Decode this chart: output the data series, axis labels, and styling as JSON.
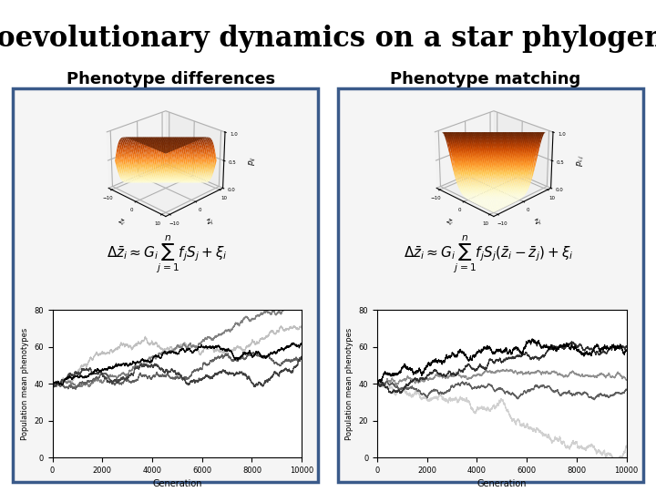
{
  "title": "Coevolutionary dynamics on a star phylogeny",
  "title_fontsize": 22,
  "subtitle_left": "Phenotype differences",
  "subtitle_right": "Phenotype matching",
  "subtitle_fontsize": 13,
  "background_color": "#ffffff",
  "panel_border_color": "#3a5a8a",
  "panel_border_lw": 2.5,
  "gen_max": 10000,
  "ylim_bottom": 0,
  "ylim_top": 80,
  "yticks": [
    0,
    20,
    40,
    60,
    80
  ],
  "xticks": [
    0,
    2000,
    4000,
    6000,
    8000,
    10000
  ],
  "xlabel": "Generation",
  "ylabel": "Population mean phenotypes",
  "left_lines": {
    "colors": [
      "#c0c0c0",
      "#808080",
      "#606060",
      "#404040",
      "#000000"
    ],
    "slopes": [
      0.0033,
      0.003,
      0.0027,
      0.0024,
      0.0016
    ],
    "noise": [
      0.4,
      0.35,
      0.35,
      0.4,
      0.3
    ],
    "start": 40
  },
  "right_lines": {
    "colors": [
      "#d0d0d0",
      "#909090",
      "#606060",
      "#303030",
      "#000000"
    ],
    "slopes": [
      -0.0037,
      -0.0008,
      -0.0002,
      0.0015,
      0.0026
    ],
    "noise": [
      0.5,
      0.3,
      0.3,
      0.35,
      0.5
    ],
    "start": 40
  }
}
